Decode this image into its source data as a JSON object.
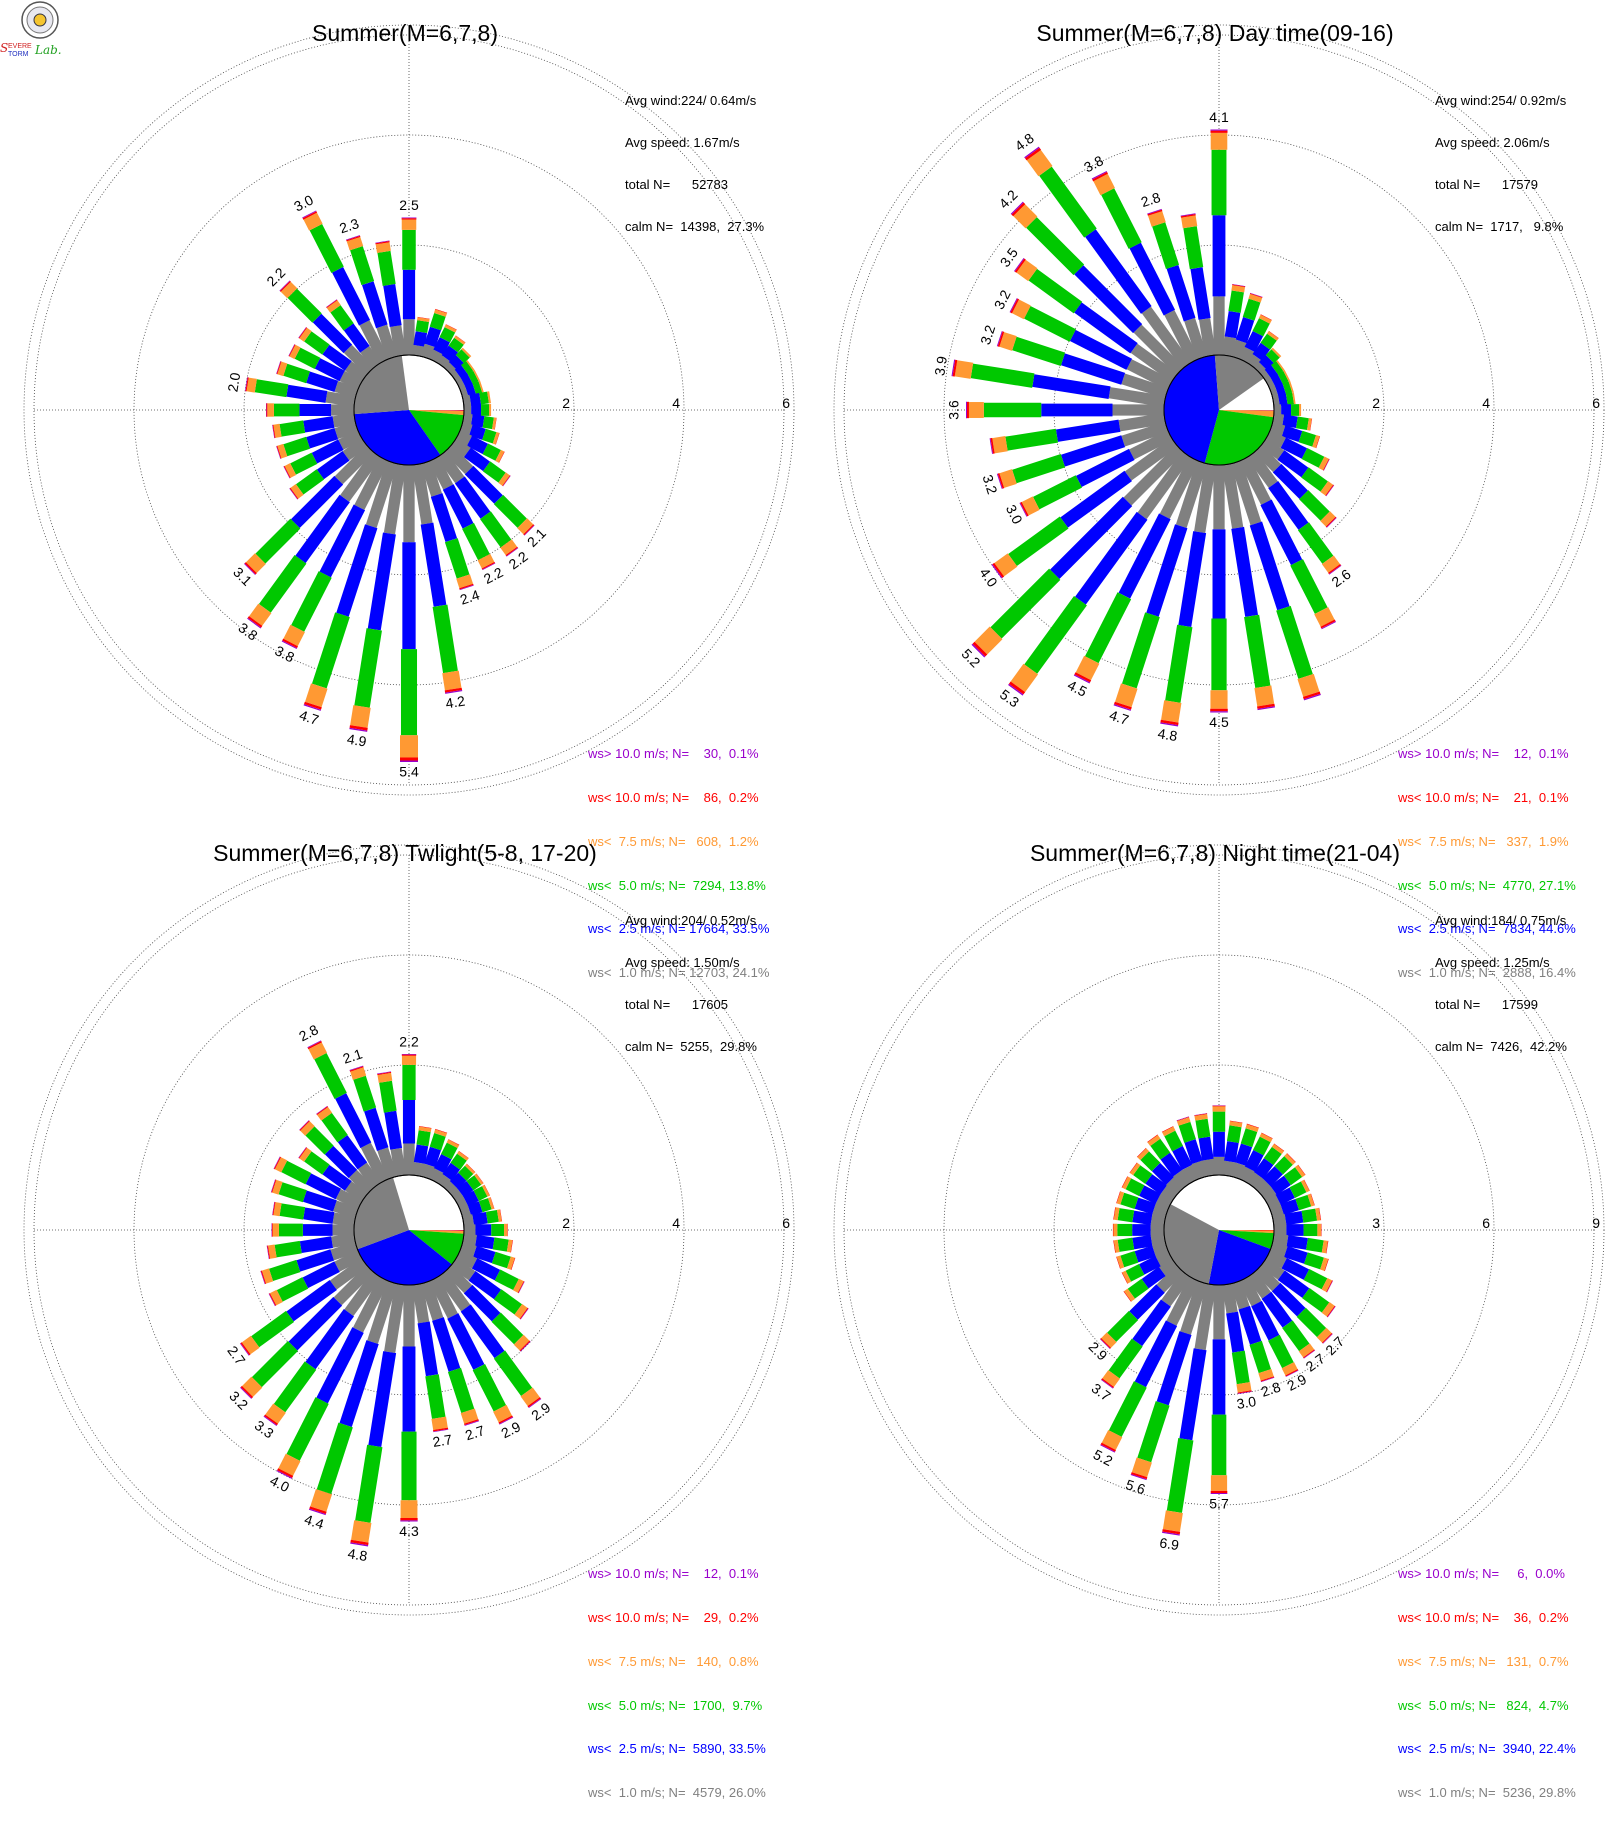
{
  "colors": {
    "gray": "#808080",
    "blue": "#0000ff",
    "green": "#00c800",
    "orange": "#ff9933",
    "red": "#ff0000",
    "purple": "#9900cc"
  },
  "logo": {
    "text": "SEVERE STORM Lab.",
    "icon": "storm-lab-seal-icon"
  },
  "chart_data": [
    {
      "type": "wind-rose",
      "title": "Summer(M=6,7,8)",
      "stats": [
        "Avg wind:224/ 0.64m/s",
        "Avg speed: 1.67m/s",
        "total N=      52783",
        "calm N=  14398,  27.3%"
      ],
      "rings": [
        2,
        4,
        6
      ],
      "ring_labels": [
        "2",
        "4",
        "6"
      ],
      "calm_pct": 27.3,
      "calm_pie": [
        0.241,
        0.335,
        0.138,
        0.012,
        0.002,
        0.001
      ],
      "totals": [
        2.5,
        0.7,
        0.9,
        0.7,
        0.6,
        0.5,
        0.4,
        0.4,
        0.4,
        0.5,
        0.5,
        0.6,
        0.7,
        0.9,
        1.2,
        2.1,
        2.2,
        2.2,
        2.4,
        4.2,
        5.4,
        4.9,
        4.7,
        3.8,
        3.8,
        3.1,
        1.6,
        1.5,
        1.5,
        1.5,
        1.6,
        2.0,
        1.5,
        1.4,
        1.4,
        2.2,
        1.4,
        3.0,
        2.3,
        2.1
      ],
      "labeled": {
        "0": "2.5",
        "15": "2.1",
        "16": "2.2",
        "17": "2.2",
        "18": "2.4",
        "19": "4.2",
        "20": "5.4",
        "21": "4.9",
        "22": "4.7",
        "23": "3.8",
        "24": "3.8",
        "25": "3.1",
        "31": "2.0",
        "35": "2.2",
        "37": "3.0",
        "38": "2.3"
      },
      "legend": [
        {
          "text": "ws> 10.0 m/s; N=    30,  0.1%",
          "color": "#9900cc"
        },
        {
          "text": "ws< 10.0 m/s; N=    86,  0.2%",
          "color": "#ff0000"
        },
        {
          "text": "ws<  7.5 m/s; N=   608,  1.2%",
          "color": "#ff9933"
        },
        {
          "text": "ws<  5.0 m/s; N=  7294, 13.8%",
          "color": "#00c800"
        },
        {
          "text": "ws<  2.5 m/s; N= 17664, 33.5%",
          "color": "#0000ff"
        },
        {
          "text": "ws<  1.0 m/s; N= 12703, 24.1%",
          "color": "#808080"
        }
      ]
    },
    {
      "type": "wind-rose",
      "title": "Summer(M=6,7,8) Day time(09-16)",
      "stats": [
        "Avg wind:254/ 0.92m/s",
        "Avg speed: 2.06m/s",
        "total N=      17579",
        "calm N=  1717,   9.8%"
      ],
      "rings": [
        2,
        4,
        6
      ],
      "ring_labels": [
        "2",
        "4",
        "6"
      ],
      "calm_pct": 9.8,
      "calm_pie": [
        0.164,
        0.446,
        0.271,
        0.019,
        0.001,
        0.001
      ],
      "totals": [
        4.1,
        1.3,
        1.2,
        0.9,
        0.7,
        0.5,
        0.4,
        0.4,
        0.4,
        0.4,
        0.5,
        0.7,
        0.9,
        1.2,
        1.5,
        1.9,
        2.6,
        3.4,
        4.5,
        4.5,
        4.5,
        4.8,
        4.7,
        4.5,
        5.3,
        5.2,
        4.0,
        3.0,
        3.2,
        3.2,
        3.6,
        3.9,
        3.2,
        3.2,
        3.5,
        4.2,
        4.8,
        3.8,
        2.8,
        2.6
      ],
      "labeled": {
        "0": "4.1",
        "16": "2.6",
        "20": "4.5",
        "21": "4.8",
        "22": "4.7",
        "23": "4.5",
        "24": "5.3",
        "25": "5.2",
        "26": "4.0",
        "27": "3.0",
        "28": "3.2",
        "30": "3.6",
        "31": "3.9",
        "32": "3.2",
        "33": "3.2",
        "34": "3.5",
        "35": "4.2",
        "36": "4.8",
        "37": "3.8",
        "38": "2.8"
      },
      "legend": [
        {
          "text": "ws> 10.0 m/s; N=    12,  0.1%",
          "color": "#9900cc"
        },
        {
          "text": "ws< 10.0 m/s; N=    21,  0.1%",
          "color": "#ff0000"
        },
        {
          "text": "ws<  7.5 m/s; N=   337,  1.9%",
          "color": "#ff9933"
        },
        {
          "text": "ws<  5.0 m/s; N=  4770, 27.1%",
          "color": "#00c800"
        },
        {
          "text": "ws<  2.5 m/s; N=  7834, 44.6%",
          "color": "#0000ff"
        },
        {
          "text": "ws<  1.0 m/s; N=  2888, 16.4%",
          "color": "#808080"
        }
      ]
    },
    {
      "type": "wind-rose",
      "title": "Summer(M=6,7,8) Twlight(5-8, 17-20)",
      "stats": [
        "Avg wind:204/ 0.52m/s",
        "Avg speed: 1.50m/s",
        "total N=      17605",
        "calm N=  5255,  29.8%"
      ],
      "rings": [
        2,
        4,
        6
      ],
      "ring_labels": [
        "2",
        "4",
        "6"
      ],
      "calm_pct": 29.8,
      "calm_pie": [
        0.26,
        0.335,
        0.097,
        0.008,
        0.002,
        0.001
      ],
      "totals": [
        2.2,
        0.9,
        0.9,
        0.8,
        0.7,
        0.6,
        0.6,
        0.6,
        0.6,
        0.7,
        0.8,
        0.9,
        1.0,
        1.3,
        1.6,
        2.0,
        2.9,
        2.9,
        2.7,
        2.7,
        4.3,
        4.8,
        4.4,
        4.0,
        3.3,
        3.2,
        2.7,
        1.8,
        1.8,
        1.6,
        1.5,
        1.5,
        1.6,
        1.7,
        1.4,
        1.7,
        1.7,
        2.8,
        2.1,
        1.9
      ],
      "labeled": {
        "0": "2.2",
        "16": "2.9",
        "17": "2.9",
        "18": "2.7",
        "19": "2.7",
        "20": "4.3",
        "21": "4.8",
        "22": "4.4",
        "23": "4.0",
        "24": "3.3",
        "25": "3.2",
        "26": "2.7",
        "37": "2.8",
        "38": "2.1"
      },
      "legend": [
        {
          "text": "ws> 10.0 m/s; N=    12,  0.1%",
          "color": "#9900cc"
        },
        {
          "text": "ws< 10.0 m/s; N=    29,  0.2%",
          "color": "#ff0000"
        },
        {
          "text": "ws<  7.5 m/s; N=   140,  0.8%",
          "color": "#ff9933"
        },
        {
          "text": "ws<  5.0 m/s; N=  1700,  9.7%",
          "color": "#00c800"
        },
        {
          "text": "ws<  2.5 m/s; N=  5890, 33.5%",
          "color": "#0000ff"
        },
        {
          "text": "ws<  1.0 m/s; N=  4579, 26.0%",
          "color": "#808080"
        }
      ]
    },
    {
      "type": "wind-rose",
      "title": "Summer(M=6,7,8) Night time(21-04)",
      "stats": [
        "Avg wind:184/ 0.75m/s",
        "Avg speed: 1.25m/s",
        "total N=      17599",
        "calm N=  7426,  42.2%"
      ],
      "rings": [
        3,
        6,
        9
      ],
      "ring_labels": [
        "3",
        "6",
        "9"
      ],
      "calm_pct": 42.2,
      "calm_pie": [
        0.298,
        0.224,
        0.047,
        0.007,
        0.002,
        0.0
      ],
      "totals": [
        1.9,
        1.5,
        1.5,
        1.4,
        1.3,
        1.3,
        1.3,
        1.2,
        1.2,
        1.3,
        1.3,
        1.5,
        1.6,
        1.9,
        2.3,
        2.7,
        2.7,
        2.9,
        2.8,
        3.0,
        5.7,
        6.9,
        5.6,
        5.2,
        3.7,
        2.9,
        1.6,
        1.4,
        1.4,
        1.4,
        1.4,
        1.4,
        1.4,
        1.4,
        1.4,
        1.5,
        1.6,
        1.6,
        1.7,
        1.7
      ],
      "labeled": {
        "15": "2.7",
        "16": "2.7",
        "17": "2.9",
        "18": "2.8",
        "19": "3.0",
        "20": "5.7",
        "21": "6.9",
        "22": "5.6",
        "23": "5.2",
        "24": "3.7",
        "25": "2.9"
      },
      "legend": [
        {
          "text": "ws> 10.0 m/s; N=     6,  0.0%",
          "color": "#9900cc"
        },
        {
          "text": "ws< 10.0 m/s; N=    36,  0.2%",
          "color": "#ff0000"
        },
        {
          "text": "ws<  7.5 m/s; N=   131,  0.7%",
          "color": "#ff9933"
        },
        {
          "text": "ws<  5.0 m/s; N=   824,  4.7%",
          "color": "#00c800"
        },
        {
          "text": "ws<  2.5 m/s; N=  3940, 22.4%",
          "color": "#0000ff"
        },
        {
          "text": "ws<  1.0 m/s; N=  5236, 29.8%",
          "color": "#808080"
        }
      ]
    }
  ]
}
